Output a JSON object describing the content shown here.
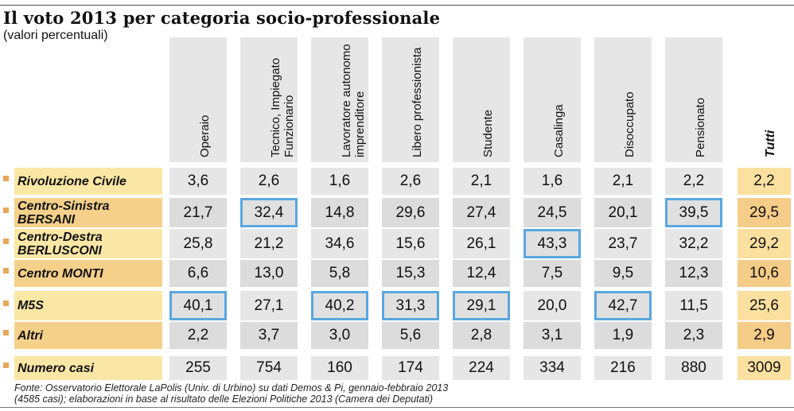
{
  "title": "Il voto 2013 per categoria socio-professionale",
  "subtitle": "(valori percentuali)",
  "columns": [
    "Operaio",
    "Tecnico, Impiegato\nFunzionario",
    "Lavoratore autonomo\nimprenditore",
    "Libero professionista",
    "Studente",
    "Casalinga",
    "Disoccupato",
    "Pensionato"
  ],
  "total_column": "Tutti",
  "rows": [
    {
      "label": "Rivoluzione Civile",
      "values": [
        "3,6",
        "2,6",
        "1,6",
        "2,6",
        "2,1",
        "1,6",
        "2,1",
        "2,2"
      ],
      "total": "2,2"
    },
    {
      "label": "Centro-Sinistra\nBERSANI",
      "values": [
        "21,7",
        "32,4",
        "14,8",
        "29,6",
        "27,4",
        "24,5",
        "20,1",
        "39,5"
      ],
      "total": "29,5"
    },
    {
      "label": "Centro-Destra\nBERLUSCONI",
      "values": [
        "25,8",
        "21,2",
        "34,6",
        "15,6",
        "26,1",
        "43,3",
        "23,7",
        "32,2"
      ],
      "total": "29,2"
    },
    {
      "label": "Centro MONTI",
      "values": [
        "6,6",
        "13,0",
        "5,8",
        "15,3",
        "12,4",
        "7,5",
        "9,5",
        "12,3"
      ],
      "total": "10,6"
    },
    {
      "label": "M5S",
      "values": [
        "40,1",
        "27,1",
        "40,2",
        "31,3",
        "29,1",
        "20,0",
        "42,7",
        "11,5"
      ],
      "total": "25,6"
    },
    {
      "label": "Altri",
      "values": [
        "2,2",
        "3,7",
        "3,0",
        "5,6",
        "2,8",
        "3,1",
        "1,9",
        "2,3"
      ],
      "total": "2,9"
    },
    {
      "label": "Numero casi",
      "values": [
        "255",
        "754",
        "160",
        "174",
        "224",
        "334",
        "216",
        "880"
      ],
      "total": "3009"
    }
  ],
  "highlighted_cells": [
    {
      "row": 1,
      "col": 1
    },
    {
      "row": 1,
      "col": 7
    },
    {
      "row": 2,
      "col": 5
    },
    {
      "row": 4,
      "col": 0
    },
    {
      "row": 4,
      "col": 2
    },
    {
      "row": 4,
      "col": 3
    },
    {
      "row": 4,
      "col": 4
    },
    {
      "row": 4,
      "col": 6
    }
  ],
  "source": "Fonte: Osservatorio Elettorale LaPolis (Univ. di Urbino) su dati Demos & Pi, gennaio-febbraio 2013\n(4585 casi); elaborazioni in base al risultato delle Elezioni Politiche 2013 (Camera dei Deputati)",
  "colors": {
    "highlight_border": "#5aa7df",
    "label_light": "#fbe7a5",
    "label_dark": "#f5d08a",
    "cell_bg": "#e6e6e6",
    "bullet": "#e8a85a"
  },
  "chart_data": {
    "type": "table",
    "title": "Il voto 2013 per categoria socio-professionale",
    "subtitle": "(valori percentuali)",
    "categories": [
      "Operaio",
      "Tecnico, Impiegato Funzionario",
      "Lavoratore autonomo imprenditore",
      "Libero professionista",
      "Studente",
      "Casalinga",
      "Disoccupato",
      "Pensionato",
      "Tutti"
    ],
    "series": [
      {
        "name": "Rivoluzione Civile",
        "values": [
          3.6,
          2.6,
          1.6,
          2.6,
          2.1,
          1.6,
          2.1,
          2.2,
          2.2
        ]
      },
      {
        "name": "Centro-Sinistra BERSANI",
        "values": [
          21.7,
          32.4,
          14.8,
          29.6,
          27.4,
          24.5,
          20.1,
          39.5,
          29.5
        ]
      },
      {
        "name": "Centro-Destra BERLUSCONI",
        "values": [
          25.8,
          21.2,
          34.6,
          15.6,
          26.1,
          43.3,
          23.7,
          32.2,
          29.2
        ]
      },
      {
        "name": "Centro MONTI",
        "values": [
          6.6,
          13.0,
          5.8,
          15.3,
          12.4,
          7.5,
          9.5,
          12.3,
          10.6
        ]
      },
      {
        "name": "M5S",
        "values": [
          40.1,
          27.1,
          40.2,
          31.3,
          29.1,
          20.0,
          42.7,
          11.5,
          25.6
        ]
      },
      {
        "name": "Altri",
        "values": [
          2.2,
          3.7,
          3.0,
          5.6,
          2.8,
          3.1,
          1.9,
          2.3,
          2.9
        ]
      },
      {
        "name": "Numero casi",
        "values": [
          255,
          754,
          160,
          174,
          224,
          334,
          216,
          880,
          3009
        ]
      }
    ]
  }
}
